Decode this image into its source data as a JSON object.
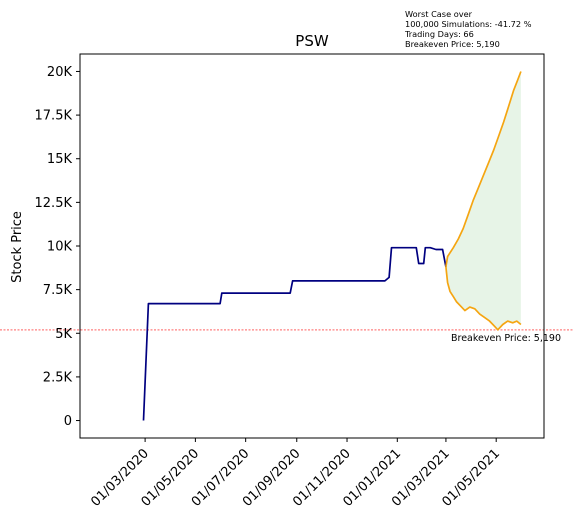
{
  "chart_data": {
    "type": "line",
    "title": "PSW",
    "xlabel": "",
    "ylabel": "Stock Price",
    "xlim": [
      "2019-12-13",
      "2021-06-28"
    ],
    "ylim": [
      -1000,
      21000
    ],
    "x_ticks": [
      "01/03/2020",
      "01/05/2020",
      "01/07/2020",
      "01/09/2020",
      "01/11/2020",
      "01/01/2021",
      "01/03/2021",
      "01/05/2021"
    ],
    "x_tick_dates": [
      "2020-03-01",
      "2020-05-01",
      "2020-07-01",
      "2020-09-01",
      "2020-11-01",
      "2021-01-01",
      "2021-03-01",
      "2021-05-01"
    ],
    "y_ticks": [
      0,
      2500,
      5000,
      7500,
      10000,
      12500,
      15000,
      17500,
      20000
    ],
    "y_tick_labels": [
      "0",
      "2.5K",
      "5K",
      "7.5K",
      "10K",
      "12.5K",
      "15K",
      "17.5K",
      "20K"
    ],
    "grid": false,
    "colors": {
      "history": "#000080",
      "projection": "#f5a511",
      "fill": "#dff0df",
      "breakeven": "#ff0000"
    },
    "series": [
      {
        "values": [
          [
            "2020-02-28",
            0
          ],
          [
            "2020-03-05",
            6700
          ],
          [
            "2020-05-31",
            6700
          ],
          [
            "2020-06-02",
            7300
          ],
          [
            "2020-08-24",
            7300
          ],
          [
            "2020-08-27",
            8000
          ],
          [
            "2020-12-17",
            8000
          ],
          [
            "2020-12-22",
            8200
          ],
          [
            "2020-12-25",
            9900
          ],
          [
            "2021-01-24",
            9900
          ],
          [
            "2021-01-27",
            9000
          ],
          [
            "2021-02-02",
            9000
          ],
          [
            "2021-02-04",
            9900
          ],
          [
            "2021-02-10",
            9900
          ],
          [
            "2021-02-17",
            9800
          ],
          [
            "2021-02-25",
            9800
          ],
          [
            "2021-03-01",
            8800
          ]
        ]
      },
      {
        "values": [
          [
            "2021-03-01",
            8800
          ],
          [
            "2021-03-03",
            9400
          ],
          [
            "2021-03-10",
            9900
          ],
          [
            "2021-03-16",
            10400
          ],
          [
            "2021-03-22",
            11000
          ],
          [
            "2021-03-28",
            11800
          ],
          [
            "2021-04-03",
            12600
          ],
          [
            "2021-04-09",
            13300
          ],
          [
            "2021-04-16",
            14100
          ],
          [
            "2021-04-22",
            14800
          ],
          [
            "2021-04-28",
            15500
          ],
          [
            "2021-05-04",
            16300
          ],
          [
            "2021-05-10",
            17100
          ],
          [
            "2021-05-16",
            18000
          ],
          [
            "2021-05-22",
            18900
          ],
          [
            "2021-05-27",
            19500
          ],
          [
            "2021-05-31",
            20000
          ]
        ]
      },
      {
        "values": [
          [
            "2021-03-01",
            8800
          ],
          [
            "2021-03-03",
            7900
          ],
          [
            "2021-03-06",
            7400
          ],
          [
            "2021-03-10",
            7100
          ],
          [
            "2021-03-14",
            6800
          ],
          [
            "2021-03-18",
            6600
          ],
          [
            "2021-03-24",
            6300
          ],
          [
            "2021-03-30",
            6500
          ],
          [
            "2021-04-05",
            6400
          ],
          [
            "2021-04-11",
            6100
          ],
          [
            "2021-04-17",
            5900
          ],
          [
            "2021-04-23",
            5700
          ],
          [
            "2021-04-29",
            5400
          ],
          [
            "2021-05-03",
            5200
          ],
          [
            "2021-05-09",
            5500
          ],
          [
            "2021-05-15",
            5700
          ],
          [
            "2021-05-21",
            5600
          ],
          [
            "2021-05-26",
            5700
          ],
          [
            "2021-05-31",
            5500
          ]
        ]
      }
    ],
    "breakeven": {
      "value": 5190,
      "label": "Breakeven Price: 5,190"
    },
    "info_box": [
      "Worst Case over",
      "100,000 Simulations: -41.72 %",
      "Trading Days: 66",
      "Breakeven Price: 5,190"
    ]
  }
}
